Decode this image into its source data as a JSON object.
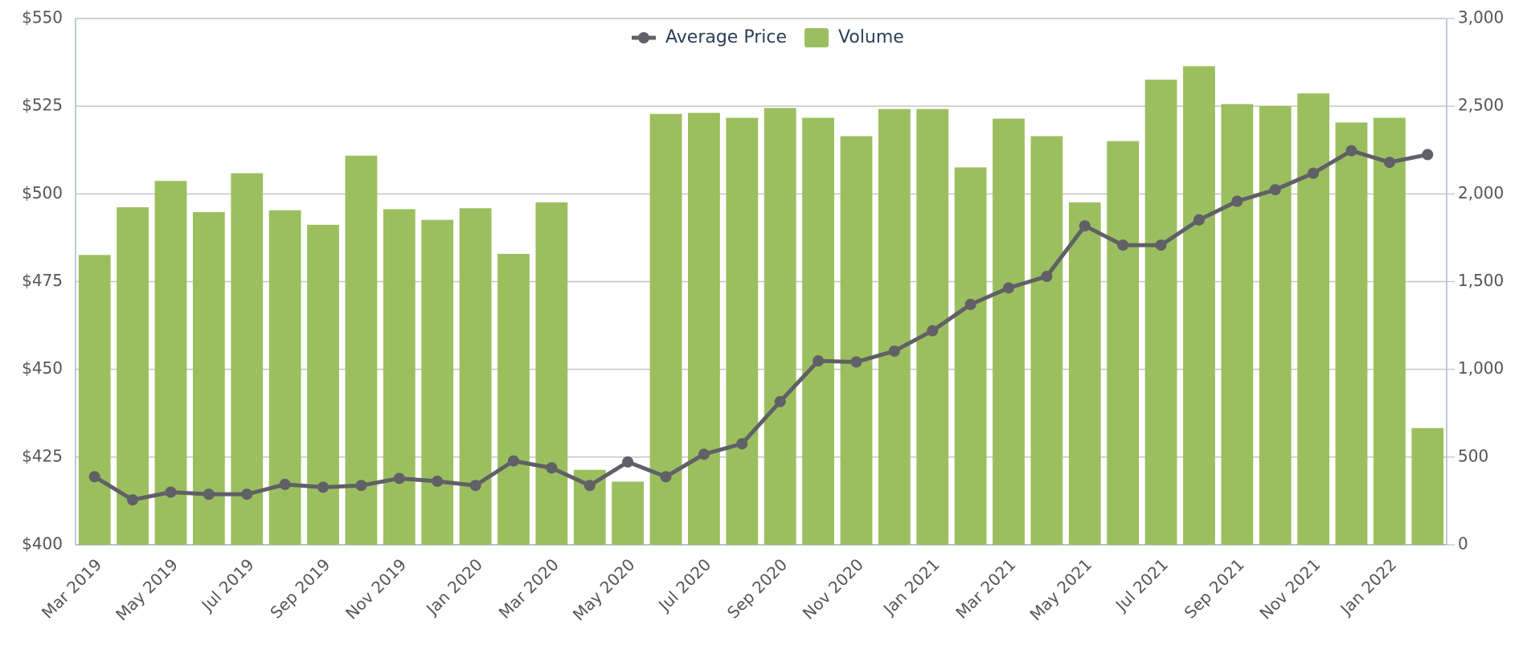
{
  "chart_data": {
    "type": "bar-line",
    "categories": [
      "Mar 2019",
      null,
      "May 2019",
      null,
      "Jul 2019",
      null,
      "Sep 2019",
      null,
      "Nov 2019",
      null,
      "Jan 2020",
      null,
      "Mar 2020",
      null,
      "May 2020",
      null,
      "Jul 2020",
      null,
      "Sep 2020",
      null,
      "Nov 2020",
      null,
      "Jan 2021",
      null,
      "Mar 2021",
      null,
      "May 2021",
      null,
      "Jul 2021",
      null,
      "Sep 2021",
      null,
      "Nov 2021",
      null,
      "Jan 2022",
      null
    ],
    "series": [
      {
        "name": "Average Price",
        "type": "line",
        "color": "#606066",
        "values": [
          419.4,
          412.8,
          415,
          414.4,
          414.4,
          417.2,
          416.4,
          416.9,
          418.9,
          418.1,
          416.9,
          423.9,
          421.9,
          416.9,
          423.6,
          419.4,
          425.8,
          428.8,
          440.8,
          452.4,
          452.1,
          455.2,
          461,
          468.5,
          473.2,
          476.5,
          490.9,
          485.4,
          485.4,
          492.6,
          497.9,
          501.2,
          505.9,
          512.3,
          509,
          511.2
        ]
      },
      {
        "name": "Volume",
        "type": "bar",
        "axis": "y2",
        "color": "#9bbf5f",
        "values": [
          1652,
          1924,
          2074,
          1896,
          2118,
          1907,
          1824,
          2218,
          1913,
          1852,
          1918,
          1658,
          1952,
          427,
          360,
          2456,
          2462,
          2434,
          2490,
          2434,
          2329,
          2484,
          2484,
          2151,
          2429,
          2329,
          1952,
          2301,
          2651,
          2728,
          2512,
          2501,
          2573,
          2407,
          2434,
          665
        ]
      }
    ],
    "ylim": [
      400,
      550
    ],
    "yticks": [
      {
        "value": 400,
        "label": "$400"
      },
      {
        "value": 425,
        "label": "$425"
      },
      {
        "value": 450,
        "label": "$450"
      },
      {
        "value": 475,
        "label": "$475"
      },
      {
        "value": 500,
        "label": "$500"
      },
      {
        "value": 525,
        "label": "$525"
      },
      {
        "value": 550,
        "label": "$550"
      }
    ],
    "y2lim": [
      0,
      3000
    ],
    "y2ticks": [
      0,
      500,
      {
        "value": 1000,
        "label": "1,000"
      },
      {
        "value": 1500,
        "label": "1,500"
      },
      {
        "value": 2000,
        "label": "2,000"
      },
      {
        "value": 2500,
        "label": "2,500"
      },
      {
        "value": 3000,
        "label": "3,000"
      }
    ],
    "grid": true,
    "legend": "top"
  }
}
